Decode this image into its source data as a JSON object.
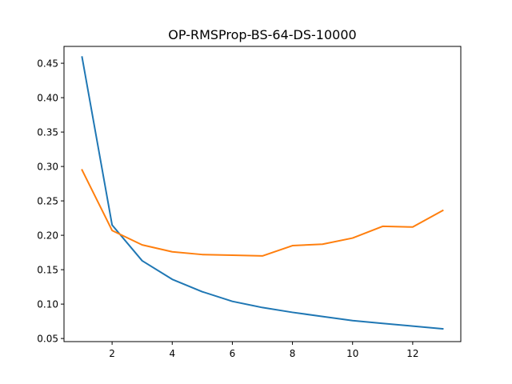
{
  "chart_data": {
    "type": "line",
    "title": "OP-RMSProp-BS-64-DS-10000",
    "xlabel": "",
    "ylabel": "",
    "x": [
      1,
      2,
      3,
      4,
      5,
      6,
      7,
      8,
      9,
      10,
      11,
      12,
      13
    ],
    "xlim": [
      0.4,
      13.6
    ],
    "ylim": [
      0.0455,
      0.4745
    ],
    "xticks": [
      2,
      4,
      6,
      8,
      10,
      12
    ],
    "xtick_labels": [
      "2",
      "4",
      "6",
      "8",
      "10",
      "12"
    ],
    "yticks": [
      0.05,
      0.1,
      0.15,
      0.2,
      0.25,
      0.3,
      0.35,
      0.4,
      0.45
    ],
    "ytick_labels": [
      "0.05",
      "0.10",
      "0.15",
      "0.20",
      "0.25",
      "0.30",
      "0.35",
      "0.40",
      "0.45"
    ],
    "grid": false,
    "legend": "none",
    "series": [
      {
        "color": "#1f77b4",
        "values": [
          0.459,
          0.215,
          0.163,
          0.136,
          0.118,
          0.104,
          0.095,
          0.088,
          0.082,
          0.076,
          0.072,
          0.068,
          0.064
        ]
      },
      {
        "color": "#ff7f0e",
        "values": [
          0.295,
          0.207,
          0.186,
          0.176,
          0.172,
          0.171,
          0.17,
          0.185,
          0.187,
          0.196,
          0.213,
          0.212,
          0.236
        ]
      }
    ]
  }
}
